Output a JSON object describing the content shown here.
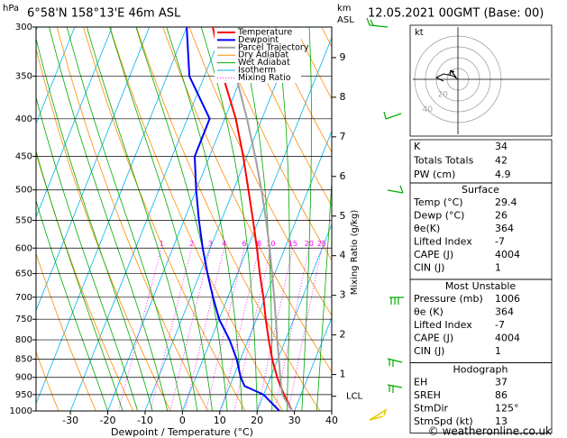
{
  "header": {
    "pressure_unit": "hPa",
    "location": "6°58'N 158°13'E 46m ASL",
    "height_unit": "km",
    "height_unit_sub": "ASL",
    "date": "12.05.2021 00GMT (Base: 00)"
  },
  "chart_data": {
    "type": "skew-t",
    "x_label": "Dewpoint / Temperature (°C)",
    "y2_label": "Mixing Ratio (g/kg)",
    "xlim": [
      -39.2,
      40
    ],
    "xticks": [
      -30,
      -20,
      -10,
      0,
      10,
      20,
      30,
      40
    ],
    "ylim": [
      1000,
      300
    ],
    "yticks": [
      1000,
      950,
      900,
      850,
      800,
      750,
      700,
      650,
      600,
      550,
      500,
      450,
      400,
      350,
      300
    ],
    "height_ticks": [
      1,
      2,
      3,
      4,
      5,
      6,
      7,
      8,
      9
    ],
    "lcl": {
      "label": "LCL",
      "pressure": 955
    },
    "mixing_ratios": [
      1,
      2,
      3,
      4,
      6,
      8,
      10,
      15,
      20,
      25
    ],
    "pressure": [
      1000,
      950,
      925,
      900,
      850,
      800,
      750,
      700,
      650,
      600,
      550,
      500,
      450,
      400,
      350,
      300
    ],
    "series": [
      {
        "name": "Temperature",
        "color": "#ff0000",
        "values": [
          29.4,
          25.5,
          23.6,
          21.8,
          18.5,
          15.5,
          12.5,
          9.5,
          6,
          2.5,
          -1.5,
          -6,
          -11,
          -17,
          -25,
          -33
        ]
      },
      {
        "name": "Dewpoint",
        "color": "#0000ff",
        "values": [
          26,
          20,
          14,
          12,
          9,
          5,
          0,
          -4,
          -8,
          -12,
          -16,
          -20,
          -24,
          -24,
          -34,
          -40
        ]
      },
      {
        "name": "Parcel Trajectory",
        "color": "#a0a0a0",
        "values": [
          29.4,
          25,
          23.8,
          22.6,
          20.3,
          17.8,
          15.2,
          12.4,
          9.3,
          5.9,
          2,
          -2.5,
          -7.8,
          -14,
          -21.5,
          -30.5
        ]
      }
    ],
    "background_lines": [
      {
        "name": "Dry Adiabat",
        "color": "#ff8c00"
      },
      {
        "name": "Wet Adiabat",
        "color": "#00aa00"
      },
      {
        "name": "Isotherm",
        "color": "#00b4f0"
      },
      {
        "name": "Mixing Ratio",
        "color": "#ff00ff"
      }
    ]
  },
  "hodograph": {
    "unit": "kt",
    "ring_labels": [
      20,
      40
    ]
  },
  "stats": {
    "indices": [
      {
        "label": "K",
        "value": 34
      },
      {
        "label": "Totals Totals",
        "value": 42
      },
      {
        "label": "PW (cm)",
        "value": 4.9
      }
    ],
    "sections": [
      {
        "title": "Surface",
        "rows": [
          {
            "label": "Temp (°C)",
            "value": 29.4
          },
          {
            "label": "Dewp (°C)",
            "value": 26
          },
          {
            "label": "θe(K)",
            "value": 364
          },
          {
            "label": "Lifted Index",
            "value": -7
          },
          {
            "label": "CAPE (J)",
            "value": 4004
          },
          {
            "label": "CIN (J)",
            "value": 1
          }
        ]
      },
      {
        "title": "Most Unstable",
        "rows": [
          {
            "label": "Pressure (mb)",
            "value": 1006
          },
          {
            "label": "θe (K)",
            "value": 364
          },
          {
            "label": "Lifted Index",
            "value": -7
          },
          {
            "label": "CAPE (J)",
            "value": 4004
          },
          {
            "label": "CIN (J)",
            "value": 1
          }
        ]
      },
      {
        "title": "Hodograph",
        "rows": [
          {
            "label": "EH",
            "value": 37
          },
          {
            "label": "SREH",
            "value": 86
          },
          {
            "label": "StmDir",
            "value": "125°"
          },
          {
            "label": "StmSpd (kt)",
            "value": 13
          }
        ]
      }
    ]
  },
  "footer": {
    "credit": "© weatheronline.co.uk"
  }
}
